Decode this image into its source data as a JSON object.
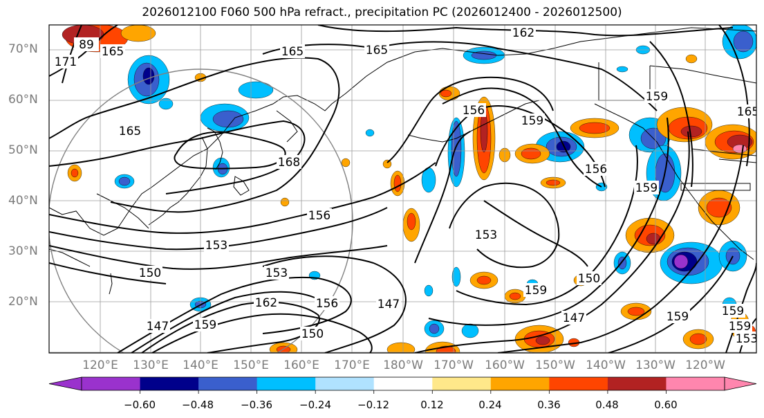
{
  "title": "2026012100 F060 500 hPa refract., precipitation PC (2026012400 - 2026012500)",
  "lat_labels": [
    "70°N",
    "60°N",
    "50°N",
    "40°N",
    "30°N",
    "20°N"
  ],
  "lon_labels": [
    "120°E",
    "130°E",
    "140°E",
    "150°E",
    "160°E",
    "170°E",
    "180°W",
    "170°W",
    "160°W",
    "150°W",
    "140°W",
    "130°W",
    "120°W"
  ],
  "contour_labels": [
    "162",
    "165",
    "165",
    "171",
    "89",
    "165",
    "165",
    "168",
    "159",
    "156",
    "153",
    "159",
    "156",
    "159",
    "165",
    "156",
    "153",
    "150",
    "153",
    "147",
    "162",
    "159",
    "150",
    "156",
    "147",
    "159",
    "150",
    "147",
    "159",
    "159",
    "153",
    "159"
  ],
  "colorbar": {
    "ticks": [
      "−0.60",
      "−0.48",
      "−0.36",
      "−0.24",
      "−0.12",
      "0.12",
      "0.24",
      "0.36",
      "0.48",
      "0.60"
    ],
    "colors": [
      "#9a32cd",
      "#00008b",
      "#3a5fcd",
      "#00bfff",
      "#b0e2ff",
      "#ffffff",
      "#ffe88a",
      "#ffa500",
      "#ff4500",
      "#b22222",
      "#ff86ae"
    ],
    "under_color": "#9a32cd",
    "over_color": "#ff86ae"
  },
  "palette": {
    "neg_strong": "#9a32cd",
    "neg_dark": "#00008b",
    "neg_mid": "#3a5fcd",
    "neg_light": "#00bfff",
    "neg_pale": "#b0e2ff",
    "pos_pale": "#ffe88a",
    "pos_light": "#ffa500",
    "pos_mid": "#ff4500",
    "pos_dark": "#b22222",
    "pos_strong": "#ff86ae"
  }
}
